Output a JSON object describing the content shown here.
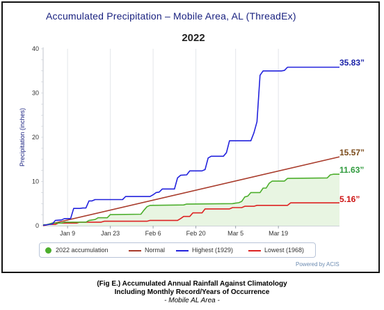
{
  "header": {
    "title": "Accumulated Precipitation – Mobile Area, AL (ThreadEx)",
    "year": "2022"
  },
  "chart_data": {
    "type": "line",
    "title": "Accumulated Precipitation – Mobile Area, AL (ThreadEx)",
    "subtitle": "2022",
    "ylabel": "Precipitation (inches)",
    "xlabel": "",
    "ylim": [
      0,
      40
    ],
    "yticks": [
      0,
      10,
      20,
      30,
      40
    ],
    "x_day_range": [
      1,
      98
    ],
    "x_ticks": [
      {
        "label": "Jan 9",
        "day": 9
      },
      {
        "label": "Jan 23",
        "day": 23
      },
      {
        "label": "Feb 6",
        "day": 37
      },
      {
        "label": "Feb 20",
        "day": 51
      },
      {
        "label": "Mar 5",
        "day": 64
      },
      {
        "label": "Mar 19",
        "day": 78
      }
    ],
    "grid": "vertical",
    "legend_position": "bottom",
    "series": [
      {
        "name": "2022 accumulation",
        "color": "#4cae2c",
        "style": "step-area",
        "points": [
          [
            1,
            0.2
          ],
          [
            2,
            0.2
          ],
          [
            3,
            0.4
          ],
          [
            4,
            0.6
          ],
          [
            7,
            0.6
          ],
          [
            8,
            0.8
          ],
          [
            9,
            0.8
          ],
          [
            15,
            0.8
          ],
          [
            16,
            1.2
          ],
          [
            18,
            1.4
          ],
          [
            19,
            1.8
          ],
          [
            22,
            1.8
          ],
          [
            23,
            2.5
          ],
          [
            33,
            2.6
          ],
          [
            34,
            3.5
          ],
          [
            35,
            4.3
          ],
          [
            36,
            4.6
          ],
          [
            47,
            4.7
          ],
          [
            48,
            4.9
          ],
          [
            63,
            5.0
          ],
          [
            64,
            5.1
          ],
          [
            65,
            5.2
          ],
          [
            66,
            5.5
          ],
          [
            67,
            6.5
          ],
          [
            68,
            6.7
          ],
          [
            69,
            7.5
          ],
          [
            72,
            7.5
          ],
          [
            73,
            8.5
          ],
          [
            74,
            8.5
          ],
          [
            75,
            9.6
          ],
          [
            76,
            10.1
          ],
          [
            80,
            10.1
          ],
          [
            81,
            10.7
          ],
          [
            94,
            10.8
          ],
          [
            95,
            11.5
          ],
          [
            96,
            11.63
          ],
          [
            98,
            11.63
          ]
        ],
        "end_value_label": "11.63”"
      },
      {
        "name": "Normal",
        "color": "#a83a2a",
        "style": "line",
        "points": [
          [
            1,
            0.0
          ],
          [
            98,
            15.57
          ]
        ],
        "end_value_label": "15.57”"
      },
      {
        "name": "Highest (1929)",
        "color": "#2222dd",
        "style": "step",
        "points": [
          [
            1,
            0.1
          ],
          [
            4,
            0.4
          ],
          [
            5,
            1.2
          ],
          [
            7,
            1.3
          ],
          [
            8,
            1.6
          ],
          [
            10,
            1.6
          ],
          [
            11,
            3.9
          ],
          [
            13,
            3.9
          ],
          [
            14,
            4.0
          ],
          [
            15,
            4.0
          ],
          [
            16,
            5.6
          ],
          [
            17,
            5.6
          ],
          [
            18,
            5.9
          ],
          [
            27,
            5.9
          ],
          [
            28,
            6.6
          ],
          [
            36,
            6.6
          ],
          [
            37,
            7.0
          ],
          [
            38,
            7.5
          ],
          [
            39,
            7.6
          ],
          [
            40,
            8.3
          ],
          [
            44,
            8.3
          ],
          [
            45,
            10.8
          ],
          [
            46,
            11.4
          ],
          [
            48,
            11.5
          ],
          [
            49,
            12.4
          ],
          [
            53,
            12.4
          ],
          [
            54,
            12.7
          ],
          [
            55,
            15.3
          ],
          [
            56,
            15.7
          ],
          [
            60,
            15.7
          ],
          [
            61,
            16.5
          ],
          [
            62,
            19.2
          ],
          [
            69,
            19.2
          ],
          [
            70,
            21.0
          ],
          [
            71,
            23.5
          ],
          [
            72,
            34.0
          ],
          [
            73,
            35.0
          ],
          [
            79,
            35.0
          ],
          [
            80,
            35.1
          ],
          [
            81,
            35.83
          ],
          [
            98,
            35.83
          ]
        ],
        "end_value_label": "35.83”"
      },
      {
        "name": "Lowest (1968)",
        "color": "#dd2222",
        "style": "step",
        "points": [
          [
            1,
            0.0
          ],
          [
            3,
            0.3
          ],
          [
            5,
            0.3
          ],
          [
            6,
            0.6
          ],
          [
            12,
            0.6
          ],
          [
            13,
            0.8
          ],
          [
            20,
            0.8
          ],
          [
            21,
            1.0
          ],
          [
            35,
            1.0
          ],
          [
            36,
            1.2
          ],
          [
            45,
            1.2
          ],
          [
            46,
            1.6
          ],
          [
            47,
            2.1
          ],
          [
            49,
            2.1
          ],
          [
            50,
            2.9
          ],
          [
            53,
            2.9
          ],
          [
            54,
            3.8
          ],
          [
            62,
            3.8
          ],
          [
            63,
            4.1
          ],
          [
            66,
            4.1
          ],
          [
            67,
            4.4
          ],
          [
            70,
            4.4
          ],
          [
            71,
            4.6
          ],
          [
            81,
            4.6
          ],
          [
            82,
            5.16
          ],
          [
            98,
            5.16
          ]
        ],
        "end_value_label": "5.16”"
      }
    ]
  },
  "legend": {
    "items": [
      {
        "label": "2022 accumulation",
        "color": "#4cae2c",
        "swatch": "dot"
      },
      {
        "label": "Normal",
        "color": "#a83a2a",
        "swatch": "line"
      },
      {
        "label": "Highest (1929)",
        "color": "#2222dd",
        "swatch": "line"
      },
      {
        "label": "Lowest (1968)",
        "color": "#dd2222",
        "swatch": "line"
      }
    ]
  },
  "end_labels": {
    "highest": {
      "text": "35.83”",
      "color": "#1a22a8"
    },
    "normal": {
      "text": "15.57”",
      "color": "#7a4a1a"
    },
    "accum": {
      "text": "11.63”",
      "color": "#2e9a3c"
    },
    "lowest": {
      "text": "5.16”",
      "color": "#cc1111"
    }
  },
  "credit": "Powered by ACIS",
  "caption": {
    "line1": "(Fig E.) Accumulated Annual Rainfall Against  Climatology",
    "line2": "Including Monthly Record/Years of Occurrence",
    "line3": "- Mobile AL Area -"
  }
}
